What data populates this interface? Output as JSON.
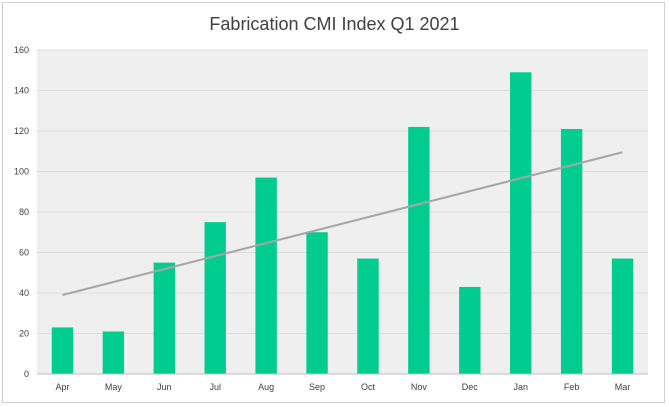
{
  "chart_data": {
    "type": "bar",
    "title": "Fabrication CMI Index Q1 2021",
    "xlabel": "",
    "ylabel": "",
    "categories": [
      "Apr",
      "May",
      "Jun",
      "Jul",
      "Aug",
      "Sep",
      "Oct",
      "Nov",
      "Dec",
      "Jan",
      "Feb",
      "Mar"
    ],
    "series": [
      {
        "values": [
          23,
          21,
          55,
          75,
          97,
          70,
          57,
          122,
          43,
          149,
          121,
          57
        ]
      }
    ],
    "trendline": {
      "type": "linear",
      "start": 39,
      "end": 109.5
    },
    "ylim": [
      0,
      160
    ],
    "yticks": [
      0,
      20,
      40,
      60,
      80,
      100,
      120,
      140,
      160
    ],
    "grid": true,
    "legend": "none",
    "colors": {
      "bar": "#00cc8f",
      "trendline": "#a6a6a6",
      "plot_background": "#efefef",
      "gridline": "#dcdcdc"
    }
  }
}
